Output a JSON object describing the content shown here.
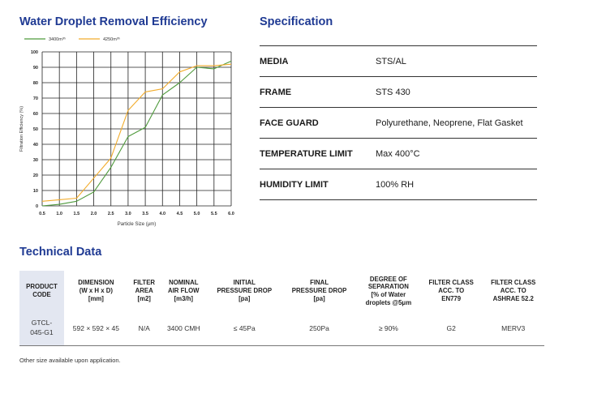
{
  "headings": {
    "chart": "Water Droplet Removal Efficiency",
    "spec": "Specification",
    "tech": "Technical Data"
  },
  "chart_data": {
    "type": "line",
    "title": "Water Droplet Removal Efficiency",
    "xlabel": "Particle Size (μm)",
    "ylabel": "Filtration Efficiency (%)",
    "xlim": [
      0.5,
      6.0
    ],
    "ylim": [
      0,
      100
    ],
    "x_ticks": [
      "0.5",
      "1.0",
      "1.5",
      "2.0",
      "2.5",
      "3.0",
      "3.5",
      "4.0",
      "4.5",
      "5.0",
      "5.5",
      "6.0"
    ],
    "y_ticks": [
      "0",
      "10",
      "20",
      "30",
      "40",
      "50",
      "60",
      "70",
      "80",
      "90",
      "100"
    ],
    "grid": true,
    "legend_position": "top-left",
    "series": [
      {
        "name": "3400m³ʰ",
        "color": "#4f9a3c",
        "points": [
          [
            0.5,
            0
          ],
          [
            1.0,
            1
          ],
          [
            1.5,
            3
          ],
          [
            2.0,
            9
          ],
          [
            2.5,
            25
          ],
          [
            3.0,
            45
          ],
          [
            3.5,
            51
          ],
          [
            4.0,
            72
          ],
          [
            4.5,
            80
          ],
          [
            5.0,
            90
          ],
          [
            5.5,
            89
          ],
          [
            6.0,
            94
          ]
        ]
      },
      {
        "name": "4250m³ʰ",
        "color": "#f2ac2c",
        "points": [
          [
            0.5,
            3
          ],
          [
            1.0,
            4
          ],
          [
            1.5,
            5
          ],
          [
            2.0,
            18
          ],
          [
            2.5,
            31
          ],
          [
            3.0,
            62
          ],
          [
            3.5,
            74
          ],
          [
            4.0,
            76
          ],
          [
            4.5,
            87
          ],
          [
            5.0,
            91
          ],
          [
            5.5,
            91
          ],
          [
            6.0,
            92
          ]
        ]
      }
    ]
  },
  "specification": [
    {
      "key": "MEDIA",
      "value": "STS/AL"
    },
    {
      "key": "FRAME",
      "value": "STS 430"
    },
    {
      "key": "FACE GUARD",
      "value": "Polyurethane, Neoprene, Flat Gasket"
    },
    {
      "key": "TEMPERATURE LIMIT",
      "value": "Max 400°C"
    },
    {
      "key": "HUMIDITY LIMIT",
      "value": "100% RH"
    }
  ],
  "technical": {
    "headers": [
      "PRODUCT\nCODE",
      "DIMENSION\n(W x H x D)\n[mm]",
      "FILTER\nAREA\n[m2]",
      "NOMINAL\nAIR FLOW\n[m3/h]",
      "INITIAL\nPRESSURE DROP\n[pa]",
      "FINAL\nPRESSURE DROP\n[pa]",
      "DEGREE OF\nSEPARATION\n[% of Water\ndroplets @5μm",
      "FILTER CLASS\nACC. TO\nEN779",
      "FILTER CLASS\nACC. TO\nASHRAE 52.2"
    ],
    "rows": [
      [
        "GTCL-\n045-G1",
        "592 × 592 × 45",
        "N/A",
        "3400 CMH",
        "≤ 45Pa",
        "250Pa",
        "≥ 90%",
        "G2",
        "MERV3"
      ]
    ]
  },
  "footnote": "Other size available upon application."
}
